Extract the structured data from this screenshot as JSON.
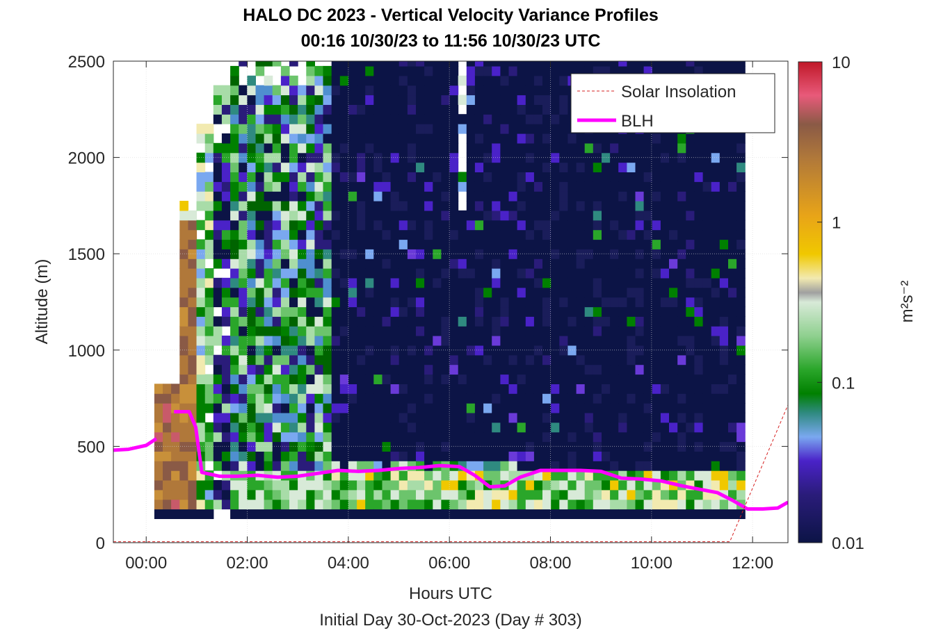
{
  "title_line1": "HALO DC 2023 - Vertical Velocity Variance Profiles",
  "title_line2": "00:16 10/30/23 to 11:56 10/30/23  UTC",
  "xlabel": "Hours UTC",
  "xlabel2": "Initial Day 30-Oct-2023 (Day # 303)",
  "ylabel": "Altitude (m)",
  "colorbar_label": "m²s⁻²",
  "legend": {
    "solar": "Solar Insolation",
    "blh": "BLH"
  },
  "colors": {
    "blh": "#ff00ff",
    "solar": "#d62020",
    "background": "#0c1446"
  },
  "chart_data": {
    "type": "heatmap",
    "title": "HALO DC 2023 - Vertical Velocity Variance Profiles",
    "subtitle": "00:16 10/30/23 to 11:56 10/30/23  UTC",
    "xlabel": "Hours UTC",
    "ylabel": "Altitude (m)",
    "xlim": [
      -0.65,
      12.7
    ],
    "ylim": [
      0,
      2500
    ],
    "x_ticks": [
      0,
      2,
      4,
      6,
      8,
      10,
      12
    ],
    "x_tick_labels": [
      "00:00",
      "02:00",
      "04:00",
      "06:00",
      "08:00",
      "10:00",
      "12:00"
    ],
    "y_ticks": [
      0,
      500,
      1000,
      1500,
      2000,
      2500
    ],
    "y_tick_labels": [
      "0",
      "500",
      "1000",
      "1500",
      "2000",
      "2500"
    ],
    "colorbar": {
      "scale": "log",
      "range": [
        0.01,
        10
      ],
      "ticks": [
        0.01,
        0.1,
        1,
        10
      ],
      "tick_labels": [
        "0.01",
        "0.1",
        "1",
        "10"
      ],
      "label": "m²s⁻²"
    },
    "grid": true,
    "legend_position": "top-right",
    "heatmap_description": "Vertical velocity variance (m²s⁻²) by time and altitude; mostly dark (~0.01) above 300 m after 03:30; green (0.05–0.2) near surface and in 01:00–03:30 column; brown/orange (0.5–3) at 00:15–00:45 below 800 m.",
    "series": [
      {
        "name": "BLH",
        "type": "line",
        "x": [
          -0.65,
          -0.35,
          0.0,
          0.2,
          0.4,
          0.55,
          0.85,
          0.98,
          1.1,
          1.45,
          1.8,
          2.2,
          2.6,
          3.0,
          3.4,
          3.8,
          4.2,
          4.6,
          5.0,
          5.4,
          5.8,
          6.2,
          6.5,
          6.8,
          7.1,
          7.4,
          7.8,
          8.2,
          8.6,
          9.0,
          9.4,
          9.8,
          10.2,
          10.6,
          11.0,
          11.3,
          11.6,
          11.9,
          12.2,
          12.5,
          12.7
        ],
        "y": [
          480,
          485,
          505,
          540,
          null,
          680,
          680,
          600,
          365,
          345,
          345,
          350,
          340,
          345,
          360,
          375,
          370,
          375,
          385,
          390,
          400,
          395,
          350,
          290,
          295,
          340,
          375,
          375,
          375,
          370,
          335,
          330,
          320,
          295,
          275,
          260,
          220,
          175,
          175,
          180,
          210
        ]
      },
      {
        "name": "Solar Insolation",
        "type": "line",
        "x": [
          -0.65,
          11.55,
          12.7
        ],
        "y": [
          5,
          5,
          715
        ]
      }
    ]
  }
}
